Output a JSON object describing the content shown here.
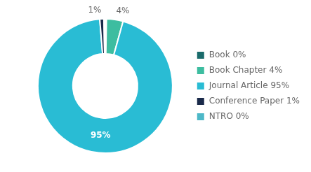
{
  "chart_data": {
    "type": "donut",
    "categories": [
      "Book 0%",
      "Book Chapter 4%",
      "Journal Article 95%",
      "Conference Paper 1%",
      "NTRO 0%"
    ],
    "values": [
      0.3,
      4,
      95,
      1,
      0.3
    ],
    "value_labels": [
      null,
      "4%",
      "95%",
      "1%",
      null
    ],
    "data_labels": true,
    "colors": [
      "#1a6b6b",
      "#3dbda0",
      "#29bcd4",
      "#1a2a4a",
      "#4db8c8"
    ],
    "legend": "right"
  }
}
